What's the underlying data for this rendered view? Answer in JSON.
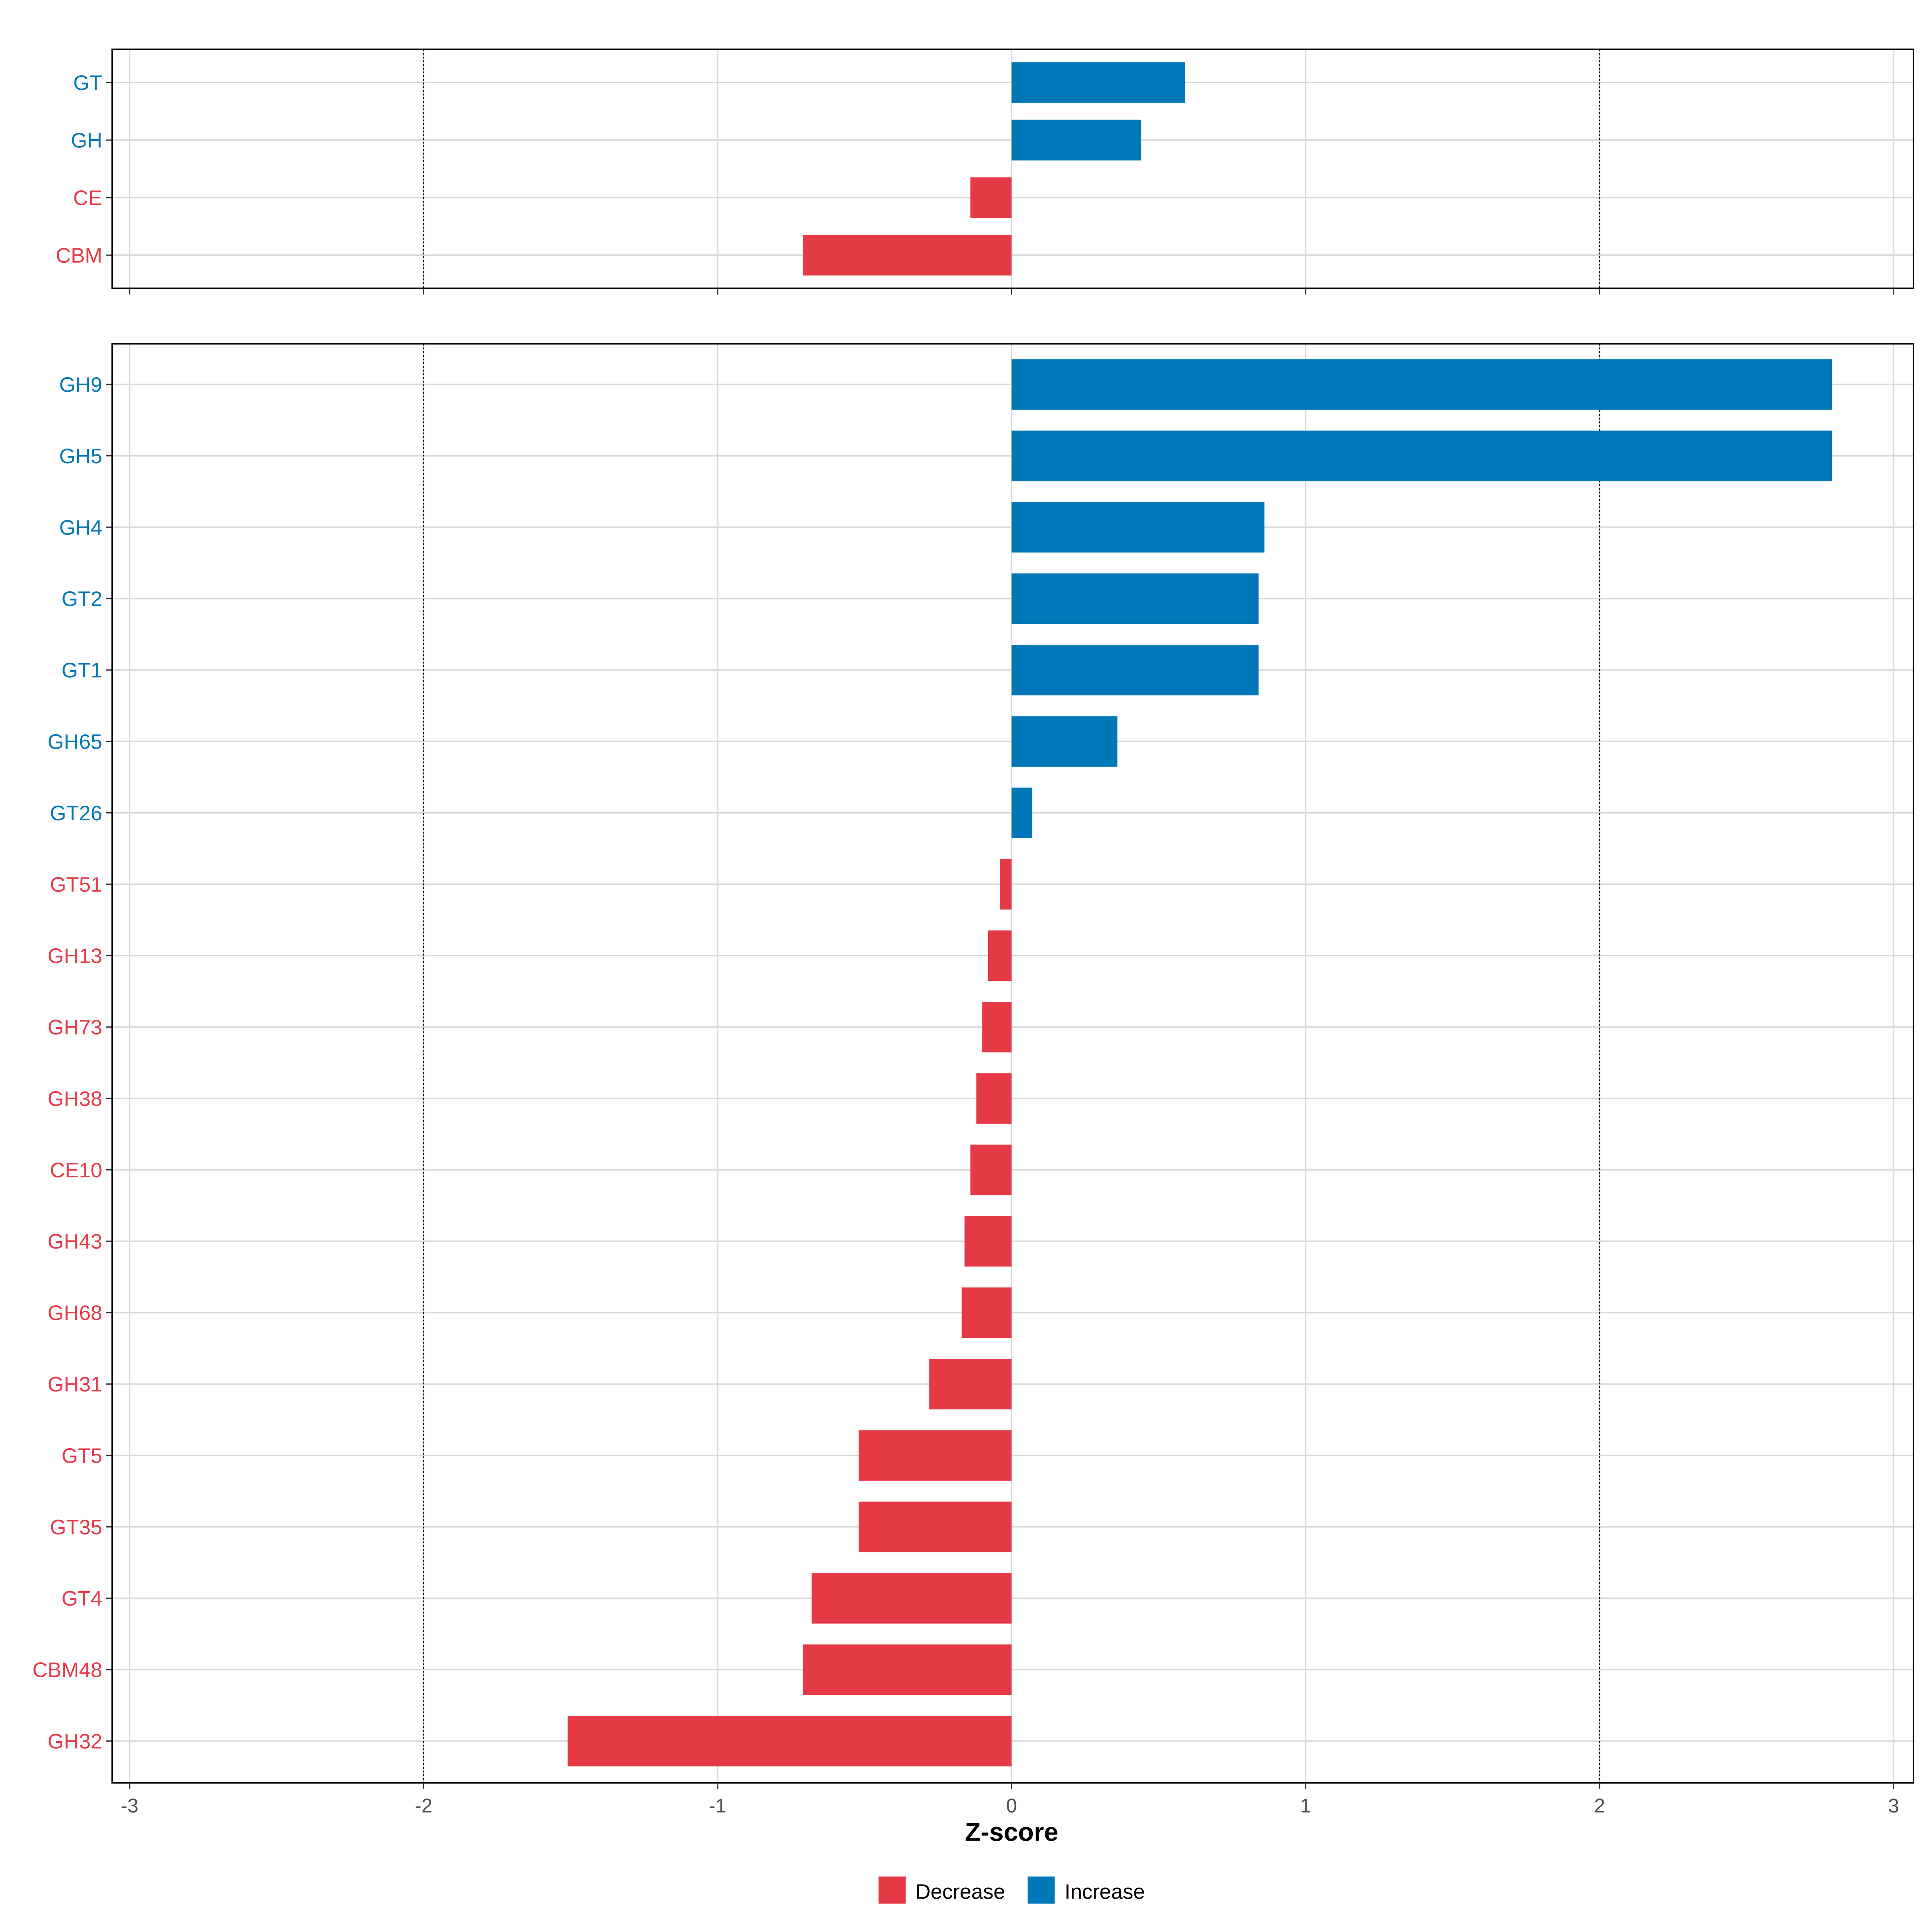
{
  "chart_data": [
    {
      "type": "bar",
      "orientation": "horizontal",
      "panel": "top",
      "categories": [
        "GT",
        "GH",
        "CE",
        "CBM"
      ],
      "values": [
        0.59,
        0.44,
        -0.14,
        -0.71
      ],
      "xlim": [
        -3,
        3
      ],
      "xticks": [
        -3,
        -2,
        -1,
        0,
        1,
        2,
        3
      ],
      "reference_lines": [
        -2,
        2
      ],
      "grid": true
    },
    {
      "type": "bar",
      "orientation": "horizontal",
      "panel": "bottom",
      "categories": [
        "GH9",
        "GH5",
        "GH4",
        "GT2",
        "GT1",
        "GH65",
        "GT26",
        "GT51",
        "GH13",
        "GH73",
        "GH38",
        "CE10",
        "GH43",
        "GH68",
        "GH31",
        "GT5",
        "GT35",
        "GT4",
        "CBM48",
        "GH32"
      ],
      "values": [
        2.79,
        2.79,
        0.86,
        0.84,
        0.84,
        0.36,
        0.07,
        -0.04,
        -0.08,
        -0.1,
        -0.12,
        -0.14,
        -0.16,
        -0.17,
        -0.28,
        -0.52,
        -0.52,
        -0.68,
        -0.71,
        -1.51
      ],
      "xlim": [
        -3,
        3
      ],
      "xticks": [
        -3,
        -2,
        -1,
        0,
        1,
        2,
        3
      ],
      "tick_labels": [
        "-3",
        "-2",
        "-1",
        "0",
        "1",
        "2",
        "3"
      ],
      "reference_lines": [
        -2,
        2
      ],
      "xlabel": "Z-score",
      "grid": true
    }
  ],
  "legend": {
    "placement": "bottom",
    "items": [
      {
        "label": "Decrease",
        "color": "#E63946"
      },
      {
        "label": "Increase",
        "color": "#0077B6"
      }
    ]
  },
  "colors": {
    "decrease": "#E63946",
    "increase": "#0077B6",
    "grid": "#D9D9D9"
  }
}
